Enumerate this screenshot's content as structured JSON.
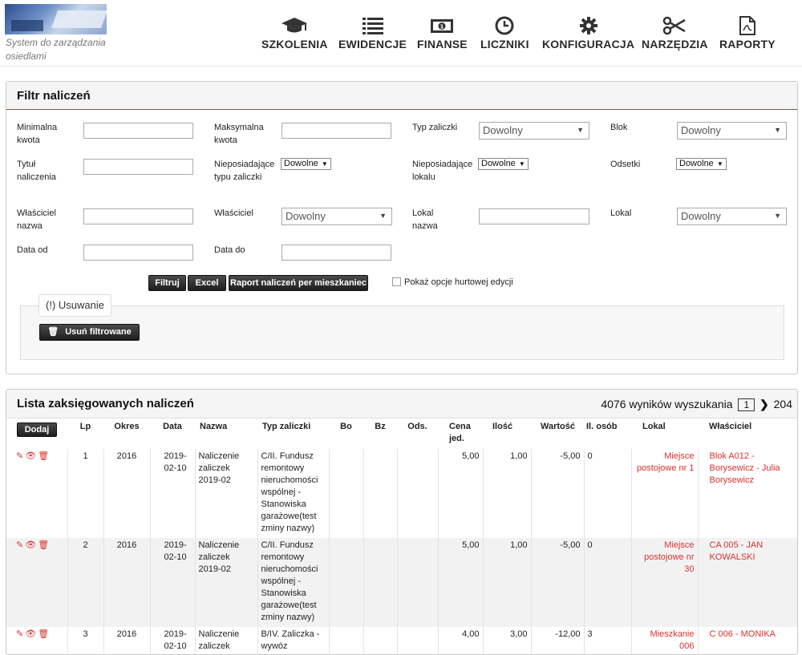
{
  "header": {
    "tagline": "System do zarządzania osiedlami",
    "nav": [
      {
        "label": "SZKOLENIA",
        "icon": "graduation-cap-icon"
      },
      {
        "label": "EWIDENCJE",
        "icon": "list-icon"
      },
      {
        "label": "FINANSE",
        "icon": "money-icon"
      },
      {
        "label": "LICZNIKI",
        "icon": "clock-icon"
      },
      {
        "label": "KONFIGURACJA",
        "icon": "gear-icon"
      },
      {
        "label": "NARZĘDZIA",
        "icon": "scissors-icon"
      },
      {
        "label": "RAPORTY",
        "icon": "pdf-icon"
      }
    ]
  },
  "filter": {
    "title": "Filtr naliczeń",
    "labels": {
      "min_kwota": "Minimalna kwota",
      "max_kwota": "Maksymalna kwota",
      "typ_zaliczki": "Typ zaliczki",
      "blok": "Blok",
      "tytul": "Tytuł naliczenia",
      "nieposiadajace_typu": "Nieposiadające typu zaliczki",
      "nieposiadajace_lokalu": "Nieposiadające lokalu",
      "odsetki": "Odsetki",
      "wlasciciel_nazwa": "Właściciel nazwa",
      "wlasciciel": "Właściciel",
      "lokal_nazwa": "Lokal nazwa",
      "lokal": "Lokal",
      "data_od": "Data od",
      "data_do": "Data do"
    },
    "values": {
      "typ_zaliczki": "Dowolny",
      "blok": "Dowolny",
      "nieposiadajace_typu": "Dowolne",
      "nieposiadajace_lokalu": "Dowolne",
      "odsetki": "Dowolne",
      "wlasciciel": "Dowolny",
      "lokal": "Dowolny"
    },
    "buttons": {
      "filtruj": "Filtruj",
      "excel": "Excel",
      "raport": "Raport naliczeń per mieszkaniec"
    },
    "bulk_edit_label": "Pokaż opcje hurtowej edycji",
    "delete_legend": "(!) Usuwanie",
    "delete_button": "Usuń filtrowane"
  },
  "list": {
    "title": "Lista zaksięgowanych naliczeń",
    "results_text": "4076 wyników wyszukania",
    "current_page": "1",
    "total_pages": "204",
    "add_button": "Dodaj",
    "columns": [
      "Lp",
      "Okres",
      "Data",
      "Nazwa",
      "Typ zaliczki",
      "Bo",
      "Bz",
      "Ods.",
      "Cena jed.",
      "Ilość",
      "Wartość",
      "Il. osób",
      "Lokal",
      "Właściciel"
    ],
    "rows": [
      {
        "lp": "1",
        "okres": "2016",
        "data": "2019-02-10",
        "nazwa": "Naliczenie zaliczek 2019-02",
        "typ": "C/II. Fundusz remontowy nieruchomości wspólnej - Stanowiska garażowe(test zminy nazwy)",
        "bo": "",
        "bz": "",
        "ods": "",
        "cena": "5,00",
        "ilosc": "1,00",
        "wartosc": "-5,00",
        "osob": "0",
        "lokal": "Miejsce postojowe nr 1",
        "wlasciciel": "Blok A012 - Borysewicz - Julia Borysewicz"
      },
      {
        "lp": "2",
        "okres": "2016",
        "data": "2019-02-10",
        "nazwa": "Naliczenie zaliczek 2019-02",
        "typ": "C/II. Fundusz remontowy nieruchomości wspólnej - Stanowiska garażowe(test zminy nazwy)",
        "bo": "",
        "bz": "",
        "ods": "",
        "cena": "5,00",
        "ilosc": "1,00",
        "wartosc": "-5,00",
        "osob": "0",
        "lokal": "Miejsce postojowe nr 30",
        "wlasciciel": "CA 005 - JAN KOWALSKI"
      },
      {
        "lp": "3",
        "okres": "2016",
        "data": "2019-02-10",
        "nazwa": "Naliczenie zaliczek",
        "typ": "B/IV. Zaliczka - wywóz",
        "bo": "",
        "bz": "",
        "ods": "",
        "cena": "4,00",
        "ilosc": "3,00",
        "wartosc": "-12,00",
        "osob": "3",
        "lokal": "Mieszkanie 006",
        "wlasciciel": "C 006 - MONIKA"
      }
    ]
  },
  "colors": {
    "link_red": "#d9312e",
    "button_dark": "#1e1e1e",
    "panel_border": "#7a5a4a"
  }
}
